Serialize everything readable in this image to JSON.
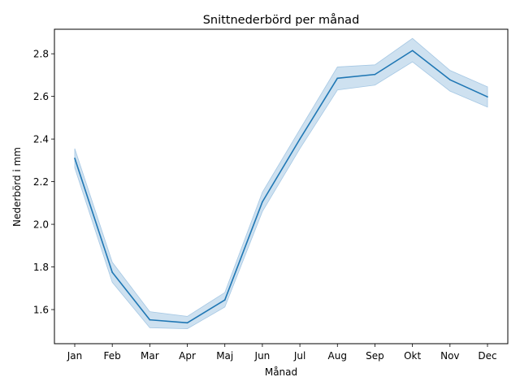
{
  "chart_data": {
    "type": "line",
    "title": "Snittnederbörd per månad",
    "xlabel": "Månad",
    "ylabel": "Nederbörd i mm",
    "categories": [
      "Jan",
      "Feb",
      "Mar",
      "Apr",
      "Maj",
      "Jun",
      "Jul",
      "Aug",
      "Sep",
      "Okt",
      "Nov",
      "Dec"
    ],
    "ylim": [
      1.44,
      2.915
    ],
    "yticks": [
      "1.6",
      "1.8",
      "2.0",
      "2.2",
      "2.4",
      "2.6",
      "2.8"
    ],
    "grid": false,
    "series": [
      {
        "values": [
          2.31,
          1.775,
          1.552,
          1.538,
          1.645,
          2.105,
          2.4,
          2.685,
          2.703,
          2.815,
          2.678,
          2.598
        ],
        "ci_lower": [
          2.265,
          1.728,
          1.515,
          1.51,
          1.612,
          2.06,
          2.355,
          2.63,
          2.653,
          2.762,
          2.625,
          2.55
        ],
        "ci_upper": [
          2.355,
          1.822,
          1.59,
          1.568,
          1.68,
          2.15,
          2.445,
          2.738,
          2.748,
          2.872,
          2.722,
          2.645
        ],
        "color": "#1f77b4",
        "band_color": "#a6c8e4"
      }
    ]
  }
}
